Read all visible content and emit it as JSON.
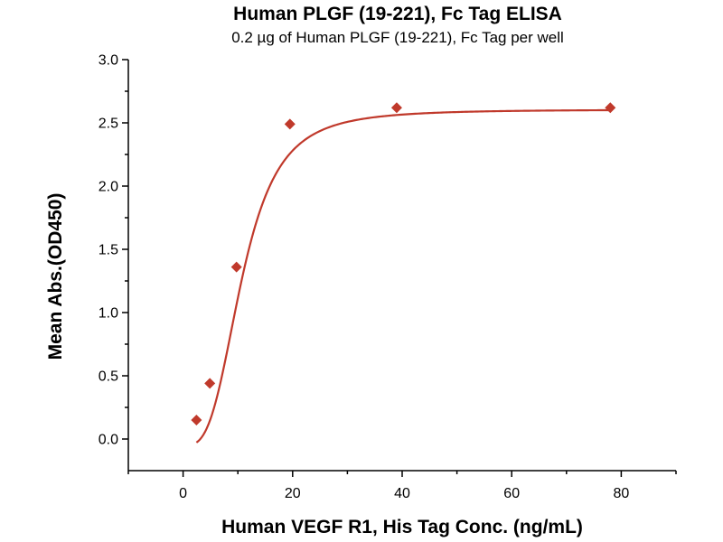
{
  "chart_data": {
    "type": "scatter",
    "title": "Human PLGF (19-221), Fc Tag ELISA",
    "subtitle": "0.2 µg of Human PLGF (19-221), Fc Tag per well",
    "xlabel": "Human VEGF R1, His Tag Conc. (ng/mL)",
    "ylabel": "Mean Abs.(OD450)",
    "xlim": [
      -10,
      90
    ],
    "ylim": [
      -0.25,
      3.0
    ],
    "x_ticks": [
      0,
      20,
      40,
      60,
      80
    ],
    "y_ticks": [
      0.0,
      0.5,
      1.0,
      1.5,
      2.0,
      2.5,
      3.0
    ],
    "x_tick_labels": [
      "0",
      "20",
      "40",
      "60",
      "80"
    ],
    "y_tick_labels": [
      "0.0",
      "0.5",
      "1.0",
      "1.5",
      "2.0",
      "2.5",
      "3.0"
    ],
    "grid": false,
    "marker_color": "#c0392b",
    "line_color": "#c0392b",
    "series": [
      {
        "points": [
          {
            "x": 2.44,
            "y": 0.15
          },
          {
            "x": 4.88,
            "y": 0.44
          },
          {
            "x": 9.75,
            "y": 1.36
          },
          {
            "x": 19.5,
            "y": 2.49
          },
          {
            "x": 39.0,
            "y": 2.62
          },
          {
            "x": 78.0,
            "y": 2.62
          }
        ],
        "fit": "four-parameter logistic"
      }
    ]
  }
}
